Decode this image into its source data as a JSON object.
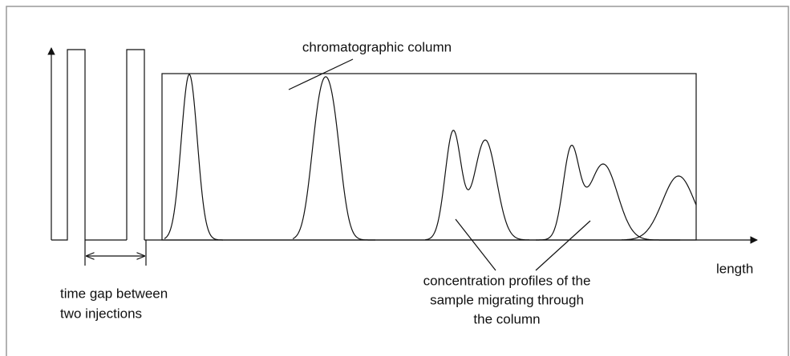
{
  "labels": {
    "column": "chromatographic column",
    "time_gap": [
      "time gap between",
      "two injections"
    ],
    "axis": "length",
    "profiles": [
      "concentration profiles of the",
      "sample migrating through",
      "the column"
    ]
  }
}
